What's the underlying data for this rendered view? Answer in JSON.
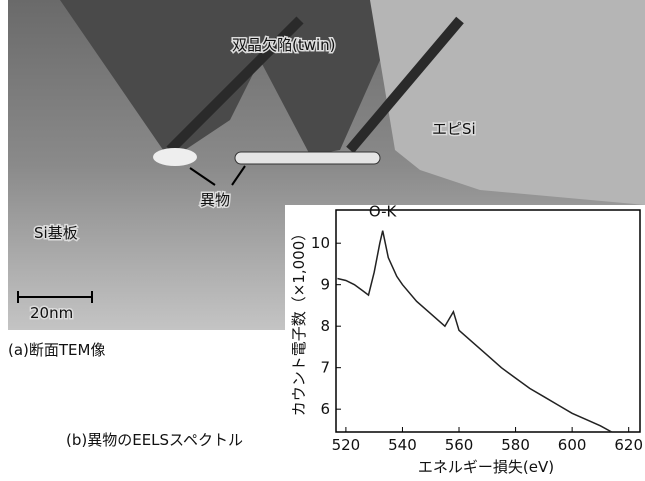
{
  "image": {
    "labels": {
      "twin": "双晶欠陥(twin)",
      "epi": "エピSi",
      "foreign": "異物",
      "substrate": "Si基板",
      "scale": "20nm"
    },
    "caption": "(a)断面TEM像"
  },
  "chart_data": {
    "type": "line",
    "caption": "(b)異物のEELSスペクトル",
    "x_label": "エネルギー損失(eV)",
    "y_label": "カウント電子数（×1,000）",
    "annotation": "O-K",
    "x": [
      517,
      520,
      523,
      526,
      528,
      530,
      532,
      533,
      535,
      538,
      540,
      545,
      550,
      555,
      558,
      560,
      565,
      570,
      575,
      580,
      585,
      590,
      595,
      600,
      605,
      610,
      614
    ],
    "values": [
      9.15,
      9.1,
      9.0,
      8.85,
      8.75,
      9.3,
      10.0,
      10.3,
      9.65,
      9.2,
      9.0,
      8.6,
      8.3,
      8.0,
      8.35,
      7.9,
      7.6,
      7.3,
      7.0,
      6.75,
      6.5,
      6.3,
      6.1,
      5.9,
      5.75,
      5.6,
      5.45
    ],
    "color": "#222222",
    "xlim": [
      516.5,
      624
    ],
    "ylim": [
      5.45,
      10.8
    ],
    "xticks": [
      520,
      540,
      560,
      580,
      600,
      620
    ],
    "yticks": [
      6,
      7,
      8,
      9,
      10
    ]
  }
}
